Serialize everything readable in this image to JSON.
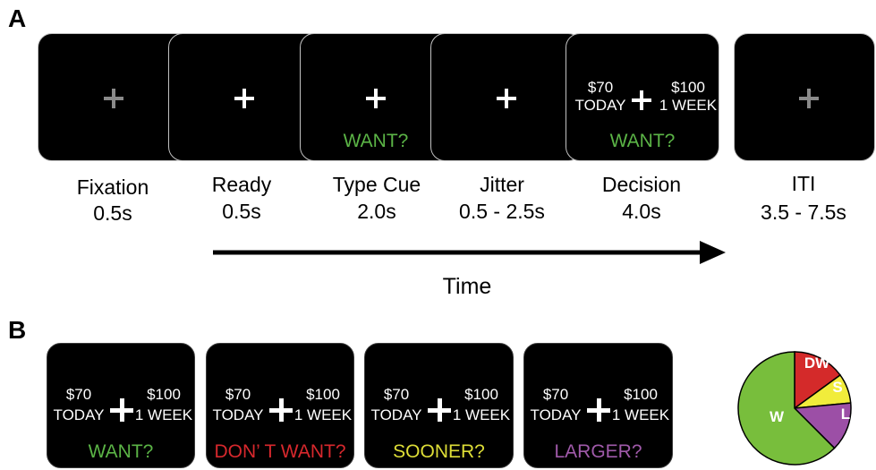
{
  "panel_a": {
    "label": "A",
    "screens": [
      {
        "name": "Fixation",
        "duration": "0.5s",
        "cross_color": "#8a8a8a"
      },
      {
        "name": "Ready",
        "duration": "0.5s",
        "cross_color": "#ffffff"
      },
      {
        "name": "Type Cue",
        "duration": "2.0s",
        "cross_color": "#ffffff",
        "cue": "WANT?",
        "cue_color": "#5bb446"
      },
      {
        "name": "Jitter",
        "duration": "0.5 - 2.5s",
        "cross_color": "#ffffff"
      },
      {
        "name": "Decision",
        "duration": "4.0s",
        "cross_color": "#ffffff",
        "left_amount": "$70",
        "left_delay": "TODAY",
        "right_amount": "$100",
        "right_delay": "1 WEEK",
        "cue": "WANT?",
        "cue_color": "#5bb446"
      },
      {
        "name": "ITI",
        "duration": "3.5 - 7.5s",
        "cross_color": "#8a8a8a"
      }
    ],
    "time_label": "Time"
  },
  "panel_b": {
    "label": "B",
    "screens": [
      {
        "left_amount": "$70",
        "left_delay": "TODAY",
        "right_amount": "$100",
        "right_delay": "1 WEEK",
        "cross_color": "#ffffff",
        "cue": "WANT?",
        "cue_color": "#5bb446"
      },
      {
        "left_amount": "$70",
        "left_delay": "TODAY",
        "right_amount": "$100",
        "right_delay": "1 WEEK",
        "cross_color": "#ffffff",
        "cue": "DON’ T WANT?",
        "cue_color": "#d7282d"
      },
      {
        "left_amount": "$70",
        "left_delay": "TODAY",
        "right_amount": "$100",
        "right_delay": "1 WEEK",
        "cross_color": "#ffffff",
        "cue": "SOONER?",
        "cue_color": "#dede37"
      },
      {
        "left_amount": "$70",
        "left_delay": "TODAY",
        "right_amount": "$100",
        "right_delay": "1 WEEK",
        "cross_color": "#ffffff",
        "cue": "LARGER?",
        "cue_color": "#a05aaa"
      }
    ],
    "pie": {
      "slices": [
        {
          "label": "DW",
          "fraction": 0.15,
          "color": "#d42a2a"
        },
        {
          "label": "S",
          "fraction": 0.085,
          "color": "#f1ec3b"
        },
        {
          "label": "L",
          "fraction": 0.14,
          "color": "#9c4fa6"
        },
        {
          "label": "W",
          "fraction": 0.625,
          "color": "#78be3c"
        }
      ]
    }
  }
}
